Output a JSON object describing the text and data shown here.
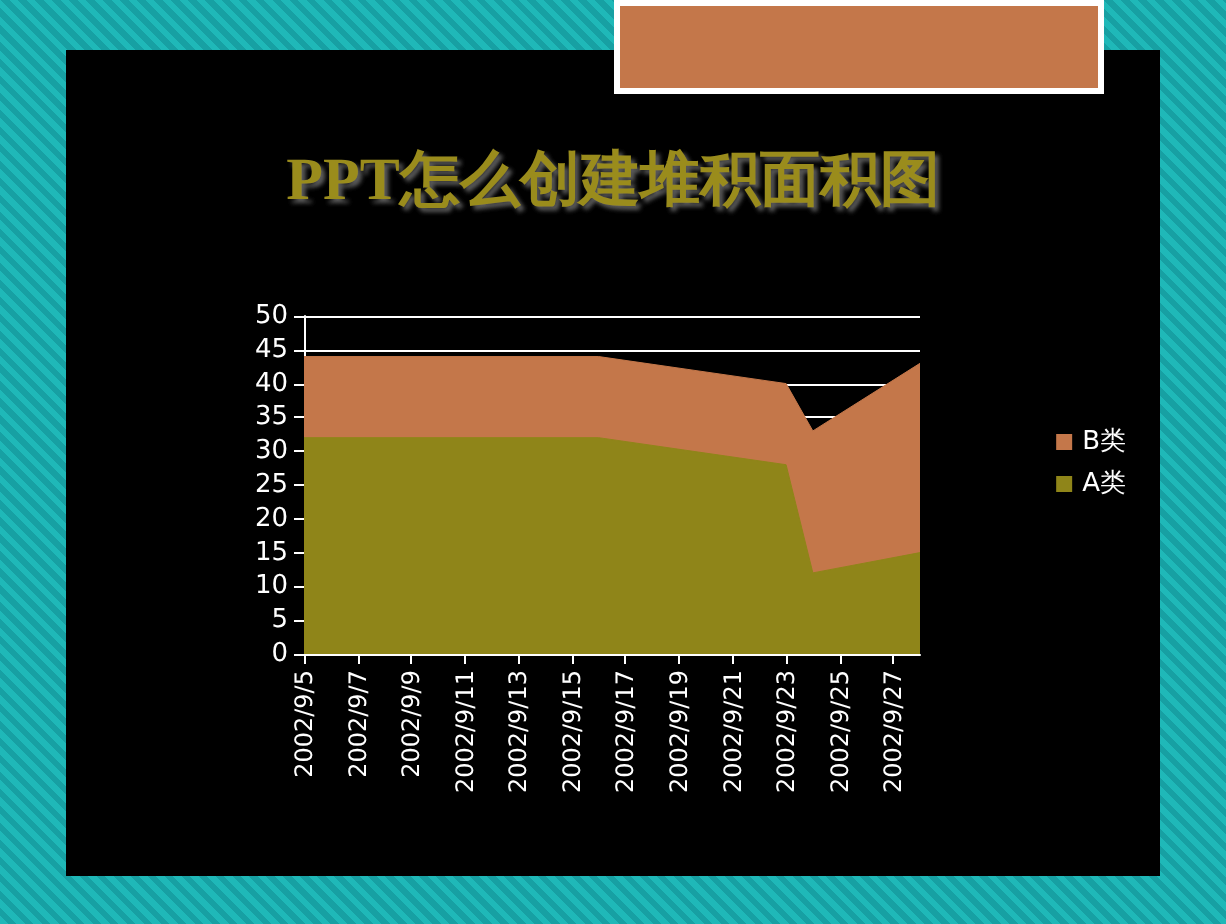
{
  "chart_data": {
    "type": "area",
    "title": "PPT怎么创建堆积面积图",
    "stacked": true,
    "x": [
      "2002-09-05",
      "2002-09-16",
      "2002-09-23",
      "2002-09-24",
      "2002-09-28"
    ],
    "series": [
      {
        "name": "A类",
        "color": "#8f8519",
        "values": [
          32,
          32,
          28,
          12,
          15
        ]
      },
      {
        "name": "B类",
        "color": "#c4774a",
        "values": [
          12,
          12,
          12,
          21,
          28
        ]
      }
    ],
    "xlim": [
      "2002-09-05",
      "2002-09-28"
    ],
    "xticks": [
      {
        "value": "2002-09-05",
        "label": "2002/9/5"
      },
      {
        "value": "2002-09-07",
        "label": "2002/9/7"
      },
      {
        "value": "2002-09-09",
        "label": "2002/9/9"
      },
      {
        "value": "2002-09-11",
        "label": "2002/9/11"
      },
      {
        "value": "2002-09-13",
        "label": "2002/9/13"
      },
      {
        "value": "2002-09-15",
        "label": "2002/9/15"
      },
      {
        "value": "2002-09-17",
        "label": "2002/9/17"
      },
      {
        "value": "2002-09-19",
        "label": "2002/9/19"
      },
      {
        "value": "2002-09-21",
        "label": "2002/9/21"
      },
      {
        "value": "2002-09-23",
        "label": "2002/9/23"
      },
      {
        "value": "2002-09-25",
        "label": "2002/9/25"
      },
      {
        "value": "2002-09-27",
        "label": "2002/9/27"
      }
    ],
    "ylim": [
      0,
      50
    ],
    "yticks": [
      0,
      5,
      10,
      15,
      20,
      25,
      30,
      35,
      40,
      45,
      50
    ],
    "grid": "y",
    "legend": "right"
  }
}
